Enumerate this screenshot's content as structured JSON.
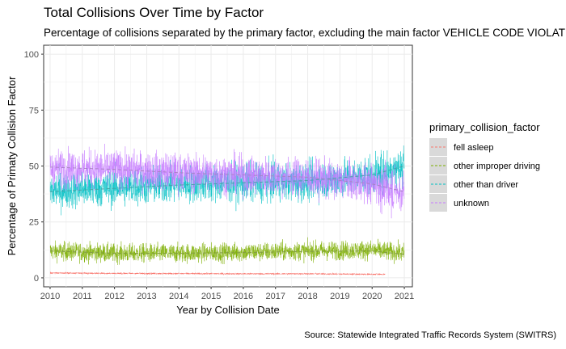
{
  "chart_data": {
    "type": "line",
    "title": "Total Collisions Over Time by Factor",
    "subtitle": "Percentage of collisions separated by the primary factor, excluding the main factor VEHICLE CODE VIOLATION",
    "xlabel": "Year by Collision Date",
    "ylabel": "Percentage of Primaty Collision Factor",
    "caption": "Source: Statewide Integrated Traffic Records System (SWITRS)",
    "xlim": [
      2009.8,
      2021.25
    ],
    "ylim": [
      -4,
      104
    ],
    "xticks": [
      "2010",
      "2011",
      "2012",
      "2013",
      "2014",
      "2015",
      "2016",
      "2017",
      "2018",
      "2019",
      "2020",
      "2021"
    ],
    "yticks": [
      "0",
      "25",
      "50",
      "75",
      "100"
    ],
    "grid": true,
    "legend": {
      "title": "primary_collision_factor",
      "position": "right"
    },
    "series": [
      {
        "name": "fell asleep",
        "color": "#F8766D",
        "x": [
          2010,
          2012,
          2014,
          2016,
          2018,
          2020,
          2020.4
        ],
        "mean": [
          2.2,
          2.0,
          1.9,
          1.8,
          1.8,
          1.6,
          1.6
        ],
        "noise": 0.4,
        "trend": [
          2.2,
          2.0,
          1.9,
          1.8,
          1.8,
          1.6,
          1.6
        ]
      },
      {
        "name": "other improper driving",
        "color": "#7CAE00",
        "x": [
          2010,
          2012,
          2014,
          2016,
          2018,
          2020,
          2021
        ],
        "mean": [
          12,
          11,
          11,
          11.5,
          12,
          12.5,
          11
        ],
        "noise": 4,
        "trend": [
          12,
          11,
          11,
          11.3,
          11.8,
          12,
          10.5
        ]
      },
      {
        "name": "other than driver",
        "color": "#00BFC4",
        "x": [
          2010,
          2012,
          2014,
          2016,
          2018,
          2020,
          2021
        ],
        "mean": [
          39,
          40.5,
          42,
          42.5,
          43,
          46,
          50
        ],
        "noise": 8,
        "trend": [
          38.5,
          40,
          41.5,
          42.5,
          43.5,
          46,
          50
        ]
      },
      {
        "name": "unknown",
        "color": "#C77CFF",
        "x": [
          2010,
          2012,
          2014,
          2016,
          2018,
          2020,
          2021
        ],
        "mean": [
          49,
          48.5,
          47,
          46,
          45,
          42,
          38
        ],
        "noise": 8,
        "trend": [
          49.5,
          48.5,
          47,
          46,
          45,
          42,
          38.5
        ]
      }
    ]
  }
}
